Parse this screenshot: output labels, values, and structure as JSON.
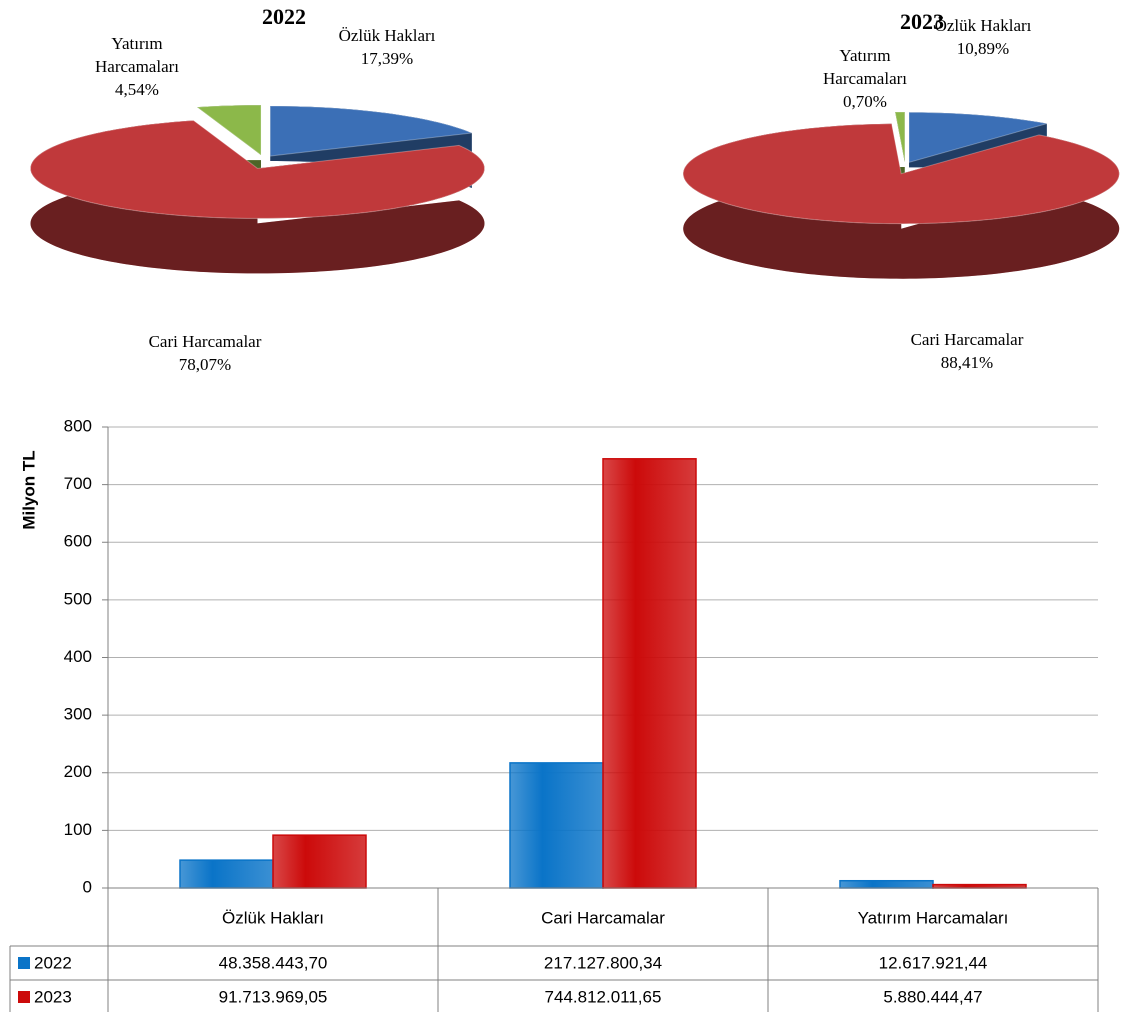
{
  "chart_data": [
    {
      "type": "pie",
      "title": "2022",
      "categories": [
        "Özlük Hakları",
        "Cari Harcamalar",
        "Yatırım Harcamaları"
      ],
      "values": [
        17.39,
        78.07,
        4.54
      ],
      "value_labels": [
        "17,39%",
        "78,07%",
        "4,54%"
      ],
      "colors": [
        "#3b6fb6",
        "#c0393b",
        "#8cb84a"
      ]
    },
    {
      "type": "pie",
      "title": "2023",
      "categories": [
        "Özlük Hakları",
        "Cari Harcamalar",
        "Yatırım Harcamaları"
      ],
      "values": [
        10.89,
        88.41,
        0.7
      ],
      "value_labels": [
        "10,89%",
        "88,41%",
        "0,70%"
      ],
      "colors": [
        "#3b6fb6",
        "#c0393b",
        "#8cb84a"
      ]
    },
    {
      "type": "bar",
      "y_label": "Milyon TL",
      "categories": [
        "Özlük Hakları",
        "Cari Harcamalar",
        "Yatırım Harcamaları"
      ],
      "series": [
        {
          "name": "2022",
          "color": "#0a74c8",
          "values": [
            48.3584437,
            217.12780034,
            12.61792144
          ],
          "value_labels": [
            "48.358.443,70",
            "217.127.800,34",
            "12.617.921,44"
          ]
        },
        {
          "name": "2023",
          "color": "#cc0a0a",
          "values": [
            91.71396905,
            744.81201165,
            5.88044447
          ],
          "value_labels": [
            "91.713.969,05",
            "744.812.011,65",
            "5.880.444,47"
          ]
        }
      ],
      "ylim": [
        0,
        800
      ],
      "yticks": [
        0,
        100,
        200,
        300,
        400,
        500,
        600,
        700,
        800
      ],
      "grid": true
    }
  ]
}
